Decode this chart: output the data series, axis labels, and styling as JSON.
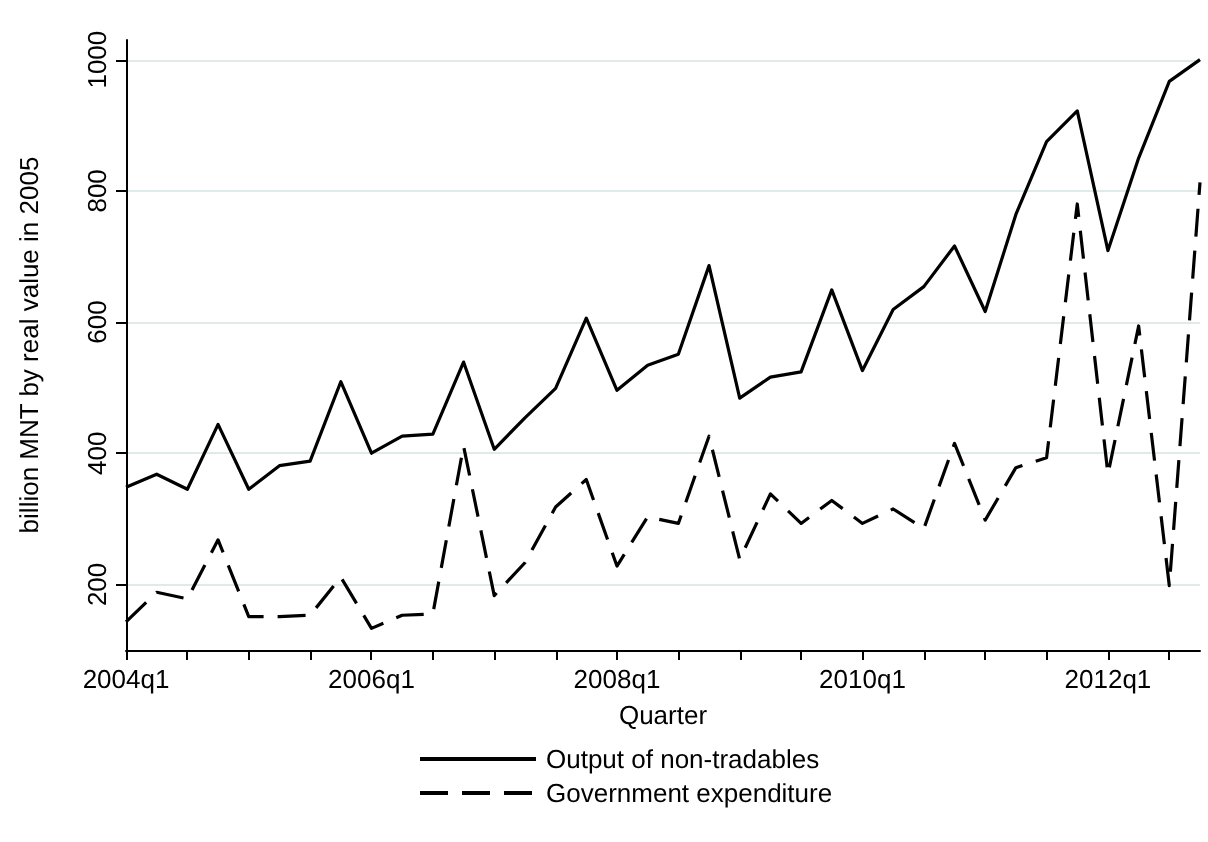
{
  "chart_data": {
    "type": "line",
    "xlabel": "Quarter",
    "ylabel": "billion MNT by real value in 2005",
    "categories": [
      "2004q1",
      null,
      null,
      null,
      null,
      null,
      null,
      null,
      "2006q1",
      null,
      null,
      null,
      null,
      null,
      null,
      null,
      "2008q1",
      null,
      null,
      null,
      null,
      null,
      null,
      null,
      "2010q1",
      null,
      null,
      null,
      null,
      null,
      null,
      null,
      "2012q1",
      null,
      null,
      null
    ],
    "series": [
      {
        "name": "Output of non-tradables",
        "color": "#000000",
        "line_style": "solid",
        "values": [
          348,
          368,
          345,
          444,
          345,
          381,
          388,
          509,
          400,
          426,
          429,
          539,
          406,
          454,
          499,
          606,
          496,
          534,
          551,
          686,
          484,
          516,
          524,
          649,
          526,
          619,
          654,
          716,
          616,
          764,
          875,
          922,
          709,
          850,
          967,
          1000
        ]
      },
      {
        "name": "Government expenditure",
        "color": "#000000",
        "line_style": "dashed",
        "values": [
          143,
          188,
          178,
          268,
          151,
          151,
          153,
          211,
          133,
          153,
          155,
          411,
          183,
          233,
          318,
          360,
          228,
          303,
          293,
          426,
          238,
          338,
          293,
          328,
          293,
          315,
          285,
          415,
          298,
          378,
          393,
          780,
          368,
          594,
          198,
          813
        ]
      }
    ],
    "ylim": [
      100,
      1030
    ],
    "yticks": [
      200,
      400,
      600,
      800,
      1000
    ],
    "grid": "y",
    "legend": "bottom",
    "marker": "none"
  }
}
